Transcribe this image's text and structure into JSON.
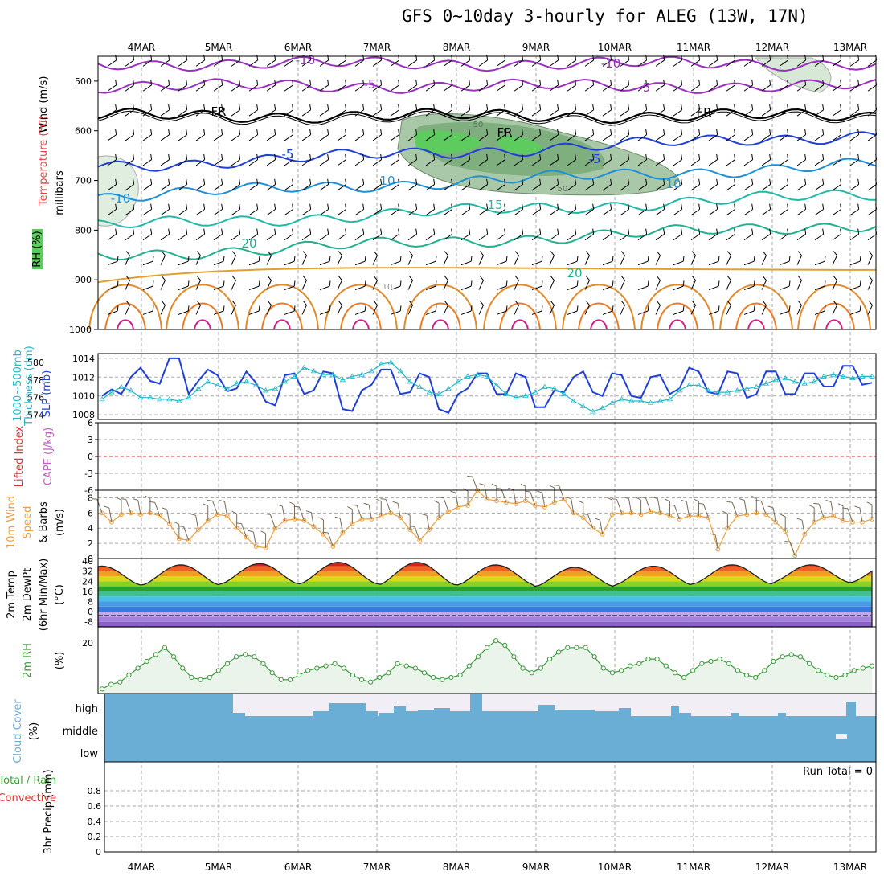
{
  "title": "GFS 0~10day 3-hourly for ALEG (13W, 17N)",
  "dates": [
    "4MAR",
    "5MAR",
    "6MAR",
    "7MAR",
    "8MAR",
    "9MAR",
    "10MAR",
    "11MAR",
    "12MAR",
    "13MAR"
  ],
  "colors": {
    "frame": "#000000",
    "grid": "#aaaaaa",
    "wind_barb": "#000000",
    "slp": "#1f3fd6",
    "thickness": "#22b8c8",
    "lifted_zero": "#e03030",
    "wind10": "#e8a040",
    "rh2m": "#3a9a3a",
    "rh2m_fill": "#eaf4ea",
    "cloud": "#6aaed6",
    "cloud_clear": "#f2eef6",
    "rain": "#3aa03a",
    "convective": "#e03030"
  },
  "labels": {
    "panel1_y": [
      "Wind (m/s)",
      "Temperature (°C)",
      "RH (%)",
      "millibars"
    ],
    "panel2_y": [
      "1000~500mb",
      "Thickness (dm)",
      "SLP (mb)"
    ],
    "panel3_y": [
      "Lifted Index",
      "CAPE (J/kg)"
    ],
    "panel4_y": [
      "10m Wind",
      "Speed",
      "& Barbs",
      "(m/s)"
    ],
    "panel5_y": [
      "2m Temp",
      "2m DewPt",
      "(6hr Min/Max)",
      "(°C)"
    ],
    "panel6_y": [
      "2m RH",
      "(%)"
    ],
    "panel7_y": [
      "Cloud Cover",
      "(%)"
    ],
    "panel8_y": [
      "Total / Rain",
      "Convective",
      "3hr Precip (mm)"
    ],
    "run_total": "Run Total = 0",
    "contour_labels": [
      "-10",
      "-5",
      "FR",
      "-5",
      "10",
      "15",
      "20",
      "-10",
      "-5",
      "FR",
      "-5",
      "10",
      "FR",
      "50",
      "50",
      "10",
      "20",
      "-10"
    ]
  },
  "chart_data": [
    {
      "type": "contour",
      "name": "vertical-profile",
      "ylabel": "millibars",
      "yticks": [
        500,
        600,
        700,
        800,
        900,
        1000
      ],
      "ylim": [
        450,
        1000
      ],
      "isotherms": [
        {
          "label": "-10",
          "color": "#9a30c0",
          "level": 465
        },
        {
          "label": "-5",
          "color": "#9a30c0",
          "level": 510
        },
        {
          "label": "FR",
          "color": "#000000",
          "level": 570
        },
        {
          "label": "-5",
          "color": "#1f3fd6",
          "level": 640
        },
        {
          "label": "10",
          "color": "#1f8fd6",
          "level": 700
        },
        {
          "label": "15",
          "color": "#22b8a8",
          "level": 760
        },
        {
          "label": "20",
          "color": "#22b090",
          "level": 820
        }
      ]
    },
    {
      "type": "line",
      "name": "slp-thickness",
      "slp_yticks": [
        1008,
        1010,
        1012,
        1014
      ],
      "slp_ylim": [
        1007.5,
        1014.5
      ],
      "thick_yticks": [
        574,
        576,
        578,
        580
      ],
      "thick_ylim": [
        573.5,
        581
      ],
      "slp": [
        1010.0,
        1010.7,
        1010.2,
        1012.0,
        1013.0,
        1011.6,
        1011.3,
        1014.0,
        1014.0,
        1010.2,
        1011.6,
        1012.8,
        1012.2,
        1010.5,
        1010.8,
        1012.6,
        1011.4,
        1009.4,
        1009.0,
        1012.2,
        1012.4,
        1010.2,
        1010.6,
        1012.6,
        1012.4,
        1008.6,
        1008.4,
        1010.6,
        1011.2,
        1012.8,
        1012.8,
        1010.2,
        1010.4,
        1012.4,
        1012.0,
        1008.6,
        1008.2,
        1010.2,
        1010.8,
        1012.4,
        1012.4,
        1010.2,
        1010.2,
        1012.4,
        1012.0,
        1008.8,
        1008.8,
        1010.6,
        1010.4,
        1012.0,
        1012.6,
        1010.4,
        1010.0,
        1012.4,
        1012.2,
        1010.0,
        1009.8,
        1012.0,
        1012.2,
        1010.2,
        1010.8,
        1013.0,
        1012.6,
        1010.4,
        1010.2,
        1012.6,
        1012.4,
        1009.8,
        1010.2,
        1012.6,
        1012.6,
        1010.2,
        1010.2,
        1012.4,
        1012.4,
        1011.0,
        1011.0,
        1013.2,
        1013.2,
        1011.2,
        1011.4
      ],
      "thickness": [
        575.8,
        576.6,
        577.2,
        576.8,
        576.0,
        576.0,
        575.8,
        575.8,
        575.6,
        576.0,
        577.0,
        577.8,
        577.4,
        577.0,
        577.6,
        577.8,
        577.4,
        576.8,
        577.0,
        577.8,
        578.4,
        579.4,
        579.0,
        578.6,
        578.6,
        578.0,
        578.4,
        578.6,
        579.0,
        579.8,
        580.0,
        579.0,
        577.8,
        577.2,
        576.6,
        576.4,
        577.0,
        577.8,
        578.4,
        578.6,
        578.4,
        577.4,
        576.4,
        576.0,
        576.2,
        576.6,
        577.2,
        577.0,
        576.4,
        575.6,
        575.0,
        574.4,
        574.8,
        575.4,
        575.8,
        575.6,
        575.6,
        575.4,
        575.6,
        575.8,
        576.8,
        577.4,
        577.4,
        576.8,
        576.6,
        576.6,
        576.8,
        577.0,
        577.2,
        577.6,
        578.0,
        578.2,
        577.8,
        577.6,
        577.8,
        578.4,
        578.6,
        578.4,
        578.2,
        578.4,
        578.4
      ]
    },
    {
      "type": "line",
      "name": "lifted-index-cape",
      "yticks": [
        -6,
        -3,
        0,
        3,
        6
      ],
      "ytick_labels": [
        "6",
        "3",
        "0",
        "-3",
        "-6"
      ],
      "ylim": [
        -6,
        6
      ],
      "lifted_index_zero": 0
    },
    {
      "type": "line",
      "name": "wind-10m",
      "yticks": [
        0,
        2,
        4,
        6,
        8
      ],
      "ylim": [
        0,
        9
      ],
      "speed": [
        6.0,
        4.8,
        5.8,
        6.0,
        5.8,
        6.0,
        5.6,
        4.6,
        2.6,
        2.4,
        3.8,
        5.0,
        5.8,
        5.6,
        4.0,
        2.8,
        1.6,
        1.4,
        4.0,
        5.0,
        5.2,
        5.0,
        4.2,
        3.2,
        1.6,
        3.4,
        4.6,
        5.2,
        5.2,
        5.6,
        6.0,
        5.4,
        3.8,
        2.4,
        3.8,
        5.4,
        6.2,
        6.8,
        7.0,
        9.0,
        7.8,
        7.6,
        7.4,
        7.2,
        7.6,
        7.0,
        6.8,
        7.4,
        7.8,
        6.0,
        5.4,
        4.0,
        3.2,
        5.8,
        6.0,
        6.0,
        5.8,
        6.2,
        6.0,
        5.6,
        5.2,
        5.6,
        5.6,
        5.4,
        1.2,
        4.0,
        5.6,
        5.8,
        6.0,
        5.8,
        4.8,
        3.6,
        0.4,
        3.2,
        4.8,
        5.4,
        5.6,
        5.0,
        4.8,
        4.8,
        5.2
      ]
    },
    {
      "type": "area",
      "name": "temp-2m",
      "yticks": [
        -8,
        0,
        8,
        16,
        24,
        32,
        40
      ],
      "ylim": [
        -12,
        42
      ],
      "temp_daily_max": [
        36,
        37,
        38,
        39,
        39,
        37,
        35,
        36,
        37,
        37
      ],
      "temp_daily_min": [
        21,
        21,
        22,
        22,
        21,
        21,
        20,
        21,
        22,
        23
      ],
      "dewpoint": -3
    },
    {
      "type": "line",
      "name": "rh-2m",
      "yticks": [
        20
      ],
      "ylim": [
        -2,
        27
      ],
      "values": [
        0,
        2,
        3,
        6,
        9,
        12,
        15,
        18,
        14,
        9,
        5,
        4,
        5,
        8,
        11,
        14,
        15,
        14,
        11,
        7,
        4,
        4,
        6,
        8,
        9,
        10,
        11,
        9,
        6,
        4,
        3,
        5,
        7,
        11,
        10,
        9,
        7,
        5,
        4,
        5,
        6,
        10,
        14,
        18,
        21,
        19,
        14,
        9,
        7,
        9,
        13,
        16,
        18,
        18,
        18,
        14,
        9,
        7,
        8,
        10,
        11,
        13,
        13,
        10,
        7,
        5,
        8,
        11,
        12,
        13,
        11,
        8,
        6,
        5,
        8,
        12,
        14,
        15,
        14,
        11,
        8,
        6,
        5,
        6,
        8,
        9,
        10
      ]
    },
    {
      "type": "heatmap",
      "name": "cloud-cover",
      "yticks": [
        "low",
        "middle",
        "high"
      ],
      "low": 100,
      "middle": 100
    },
    {
      "type": "bar",
      "name": "precip-3hr",
      "yticks": [
        0,
        0.2,
        0.4,
        0.6,
        0.8
      ],
      "ylim": [
        0,
        1.0
      ]
    }
  ]
}
